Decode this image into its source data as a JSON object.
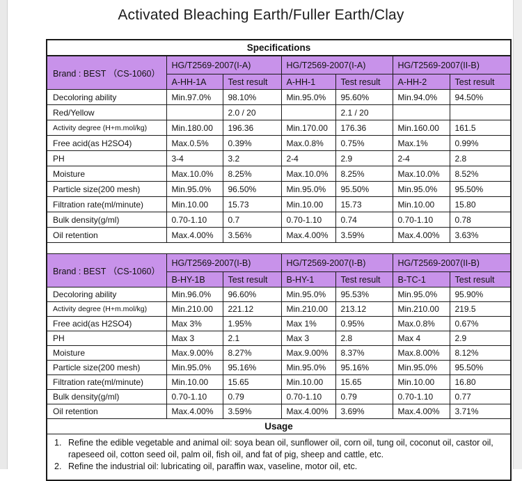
{
  "page": {
    "title": "Activated Bleaching Earth/Fuller Earth/Clay"
  },
  "table": {
    "spec_header": "Specifications",
    "colors": {
      "header_fill": "#c892ea",
      "border": "#1a1a1a"
    },
    "sections": [
      {
        "brand": "Brand : BEST （CS-1060）",
        "standards": [
          "HG/T2569-2007(I-A)",
          "HG/T2569-2007(I-A)",
          "HG/T2569-2007(II-B)"
        ],
        "grades": [
          "A-HH-1A",
          "Test result",
          "A-HH-1",
          "Test result",
          "A-HH-2",
          "Test result"
        ],
        "rows": [
          {
            "label": "Decoloring ability",
            "cells": [
              "Min.97.0%",
              "98.10%",
              "Min.95.0%",
              "95.60%",
              "Min.94.0%",
              "94.50%"
            ]
          },
          {
            "label": "Red/Yellow",
            "cells": [
              "",
              "2.0 / 20",
              "",
              "2.1 / 20",
              "",
              ""
            ]
          },
          {
            "label": "Activity degree (H+m.mol/kg)",
            "small": true,
            "cells": [
              "Min.180.00",
              "196.36",
              "Min.170.00",
              "176.36",
              "Min.160.00",
              "161.5"
            ]
          },
          {
            "label": "Free acid(as H2SO4)",
            "cells": [
              "Max.0.5%",
              "0.39%",
              "Max.0.8%",
              "0.75%",
              "Max.1%",
              "0.99%"
            ]
          },
          {
            "label": "PH",
            "cells": [
              "3-4",
              "3.2",
              "2-4",
              "2.9",
              "2-4",
              "2.8"
            ]
          },
          {
            "label": "Moisture",
            "cells": [
              "Max.10.0%",
              "8.25%",
              "Max.10.0%",
              "8.25%",
              "Max.10.0%",
              "8.52%"
            ]
          },
          {
            "label": "Particle size(200 mesh)",
            "cells": [
              "Min.95.0%",
              "96.50%",
              "Min.95.0%",
              "95.50%",
              "Min.95.0%",
              "95.50%"
            ]
          },
          {
            "label": "Filtration rate(ml/minute)",
            "cells": [
              "Min.10.00",
              "15.73",
              "Min.10.00",
              "15.73",
              "Min.10.00",
              "15.80"
            ]
          },
          {
            "label": "Bulk density(g/ml)",
            "cells": [
              "0.70-1.10",
              "0.7",
              "0.70-1.10",
              "0.74",
              "0.70-1.10",
              "0.78"
            ]
          },
          {
            "label": "Oil retention",
            "cells": [
              "Max.4.00%",
              "3.56%",
              "Max.4.00%",
              "3.59%",
              "Max.4.00%",
              "3.63%"
            ]
          }
        ]
      },
      {
        "brand": "Brand : BEST （CS-1060）",
        "standards": [
          "HG/T2569-2007(I-B)",
          "HG/T2569-2007(I-B)",
          "HG/T2569-2007(II-B)"
        ],
        "grades": [
          "B-HY-1B",
          "Test result",
          "B-HY-1",
          "Test result",
          "B-TC-1",
          "Test result"
        ],
        "rows": [
          {
            "label": "Decoloring ability",
            "cells": [
              "Min.96.0%",
              "96.60%",
              "Min.95.0%",
              "95.53%",
              "Min.95.0%",
              "95.90%"
            ]
          },
          {
            "label": "Activity degree (H+m.mol/kg)",
            "small": true,
            "cells": [
              "Min.210.00",
              "221.12",
              "Min.210.00",
              "213.12",
              "Min.210.00",
              "219.5"
            ]
          },
          {
            "label": "Free acid(as H2SO4)",
            "cells": [
              "Max 3%",
              "1.95%",
              "Max 1%",
              "0.95%",
              "Max.0.8%",
              "0.67%"
            ]
          },
          {
            "label": "PH",
            "cells": [
              "Max 3",
              "2.1",
              "Max 3",
              "2.8",
              "Max 4",
              "2.9"
            ]
          },
          {
            "label": "Moisture",
            "cells": [
              "Max.9.00%",
              "8.27%",
              "Max.9.00%",
              "8.37%",
              "Max.8.00%",
              "8.12%"
            ]
          },
          {
            "label": "Particle size(200 mesh)",
            "cells": [
              "Min.95.0%",
              "95.16%",
              "Min.95.0%",
              "95.16%",
              "Min.95.0%",
              "95.50%"
            ]
          },
          {
            "label": "Filtration rate(ml/minute)",
            "cells": [
              "Min.10.00",
              "15.65",
              "Min.10.00",
              "15.65",
              "Min.10.00",
              "16.80"
            ]
          },
          {
            "label": "Bulk density(g/ml)",
            "cells": [
              "0.70-1.10",
              "0.79",
              "0.70-1.10",
              "0.79",
              "0.70-1.10",
              "0.77"
            ]
          },
          {
            "label": "Oil retention",
            "cells": [
              "Max.4.00%",
              "3.59%",
              "Max.4.00%",
              "3.69%",
              "Max.4.00%",
              "3.71%"
            ]
          }
        ]
      }
    ],
    "usage": {
      "header": "Usage",
      "items": [
        {
          "num": "1.",
          "text": "Refine the edible vegetable and animal oil: soya bean oil, sunflower oil, corn oil, tung oil, coconut oil, castor oil, rapeseed oil, cotton seed oil, palm oil, fish oil, and fat of pig, sheep and cattle, etc."
        },
        {
          "num": "2.",
          "text": "Refine the industrial oil: lubricating oil, paraffin wax, vaseline, motor oil, etc."
        }
      ]
    }
  }
}
